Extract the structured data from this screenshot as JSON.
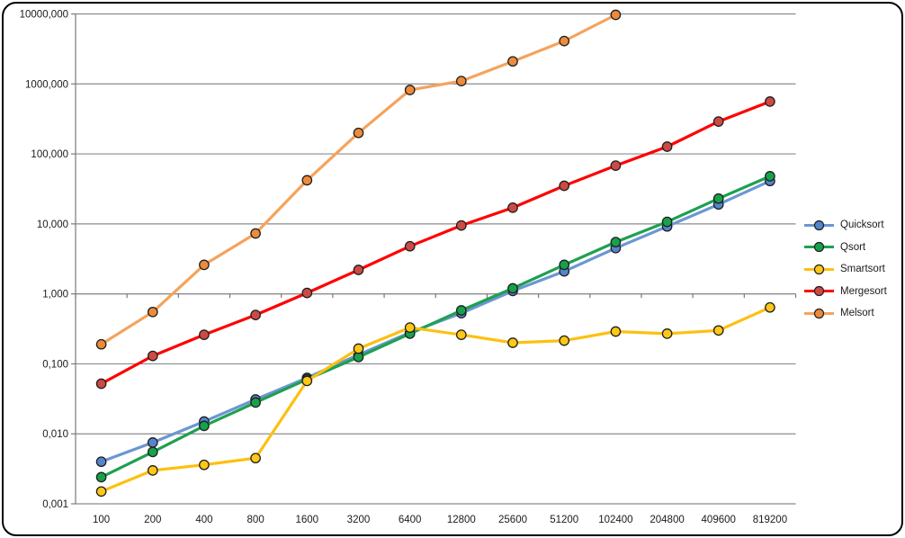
{
  "chart_data": {
    "type": "line",
    "title": "",
    "xlabel": "",
    "ylabel": "",
    "x_categories": [
      "100",
      "200",
      "400",
      "800",
      "1600",
      "3200",
      "6400",
      "12800",
      "25600",
      "51200",
      "102400",
      "204800",
      "409600",
      "819200"
    ],
    "y_axis": {
      "scale": "log",
      "min": 0.001,
      "max": 10000,
      "tick_labels_top_to_bottom": [
        "10000,000",
        "1000,000",
        "100,000",
        "10,000",
        "1,000",
        "0,100",
        "0,010",
        "0,001"
      ]
    },
    "grid": true,
    "legend_position": "right",
    "series": [
      {
        "name": "Quicksort",
        "line_color": "#6C96D2",
        "marker_color": "#5585CB",
        "values": [
          0.004,
          0.0075,
          0.015,
          0.031,
          0.063,
          0.135,
          0.28,
          0.53,
          1.1,
          2.1,
          4.5,
          9.2,
          19,
          41
        ]
      },
      {
        "name": "Qsort",
        "line_color": "#1EA050",
        "marker_color": "#16A14B",
        "values": [
          0.0024,
          0.0055,
          0.013,
          0.028,
          0.06,
          0.125,
          0.27,
          0.58,
          1.2,
          2.6,
          5.5,
          10.7,
          23,
          48
        ]
      },
      {
        "name": "Smartsort",
        "line_color": "#FDC011",
        "marker_color": "#FFC716",
        "values": [
          0.0015,
          0.003,
          0.0036,
          0.0045,
          0.057,
          0.165,
          0.33,
          0.26,
          0.2,
          0.215,
          0.29,
          0.27,
          0.3,
          0.64
        ]
      },
      {
        "name": "Mergesort",
        "line_color": "#FF0000",
        "marker_color": "#CD4A44",
        "values": [
          0.052,
          0.13,
          0.26,
          0.5,
          1.03,
          2.2,
          4.8,
          9.5,
          17,
          35,
          68,
          127,
          290,
          560
        ]
      },
      {
        "name": "Melsort",
        "line_color": "#F5A35D",
        "marker_color": "#ED8B3B",
        "values": [
          0.19,
          0.55,
          2.6,
          7.3,
          42,
          200,
          820,
          1100,
          2100,
          4100,
          9700,
          null,
          null,
          null
        ]
      }
    ]
  },
  "colors": {
    "background": "#FFFFFF",
    "frame_border": "#000000",
    "gridline": "#8C8C8C",
    "axis_line": "#7A7A7A",
    "tick_text": "#1A1A1A",
    "marker_outline": "#1F1F1F"
  }
}
